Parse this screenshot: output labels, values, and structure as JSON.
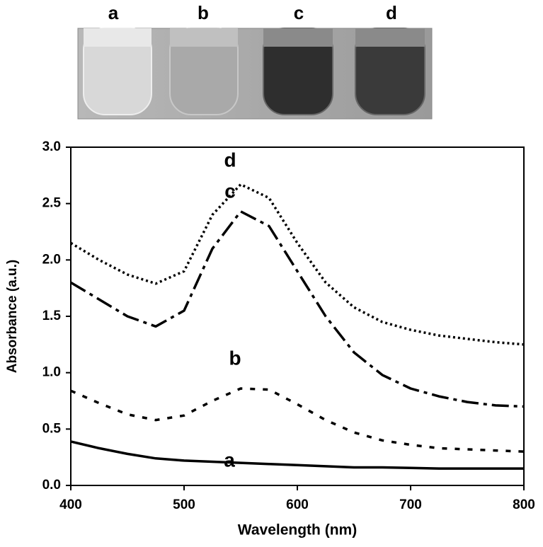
{
  "photo_labels": [
    "a",
    "b",
    "c",
    "d"
  ],
  "chart_data": {
    "type": "line",
    "xlabel": "Wavelength (nm)",
    "ylabel": "Absorbance (a.u.)",
    "x": [
      400,
      425,
      450,
      475,
      500,
      525,
      550,
      575,
      600,
      625,
      650,
      675,
      700,
      725,
      750,
      775,
      800
    ],
    "series": [
      {
        "name": "a",
        "color": "#000000",
        "values": [
          0.39,
          0.33,
          0.28,
          0.24,
          0.22,
          0.21,
          0.2,
          0.19,
          0.18,
          0.17,
          0.16,
          0.16,
          0.155,
          0.15,
          0.15,
          0.15,
          0.15
        ]
      },
      {
        "name": "b",
        "color": "#000000",
        "values": [
          0.84,
          0.73,
          0.63,
          0.58,
          0.62,
          0.75,
          0.86,
          0.85,
          0.72,
          0.58,
          0.47,
          0.4,
          0.36,
          0.33,
          0.32,
          0.31,
          0.3
        ]
      },
      {
        "name": "c",
        "color": "#000000",
        "values": [
          1.8,
          1.65,
          1.5,
          1.41,
          1.55,
          2.1,
          2.43,
          2.3,
          1.9,
          1.5,
          1.18,
          0.98,
          0.86,
          0.79,
          0.74,
          0.71,
          0.7
        ]
      },
      {
        "name": "d",
        "color": "#000000",
        "values": [
          2.15,
          2.0,
          1.87,
          1.79,
          1.9,
          2.4,
          2.67,
          2.55,
          2.15,
          1.8,
          1.58,
          1.45,
          1.38,
          1.33,
          1.3,
          1.27,
          1.25
        ]
      }
    ],
    "xlim": [
      400,
      800
    ],
    "xticks": [
      400,
      500,
      600,
      700,
      800
    ],
    "ylim": [
      0,
      3
    ],
    "yticks": [
      {
        "value": 0,
        "label": "0.0"
      },
      {
        "value": 0.5,
        "label": "0.5"
      },
      {
        "value": 1,
        "label": "1.0"
      },
      {
        "value": 1.5,
        "label": "1.5"
      },
      {
        "value": 2,
        "label": "2.0"
      },
      {
        "value": 2.5,
        "label": "2.5"
      },
      {
        "value": 3,
        "label": "3.0"
      }
    ],
    "grid": false
  }
}
